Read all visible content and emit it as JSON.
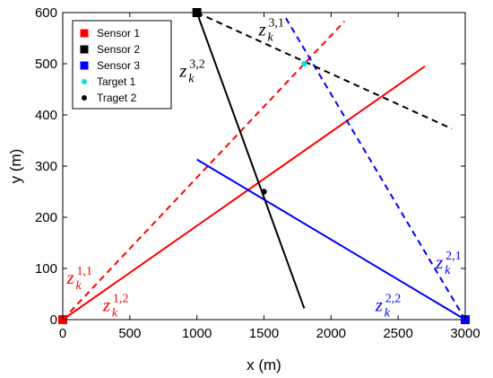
{
  "chart_data": {
    "type": "line",
    "xlabel": "x (m)",
    "ylabel": "y (m)",
    "xlim": [
      0,
      3000
    ],
    "ylim": [
      0,
      600
    ],
    "xticks": [
      0,
      500,
      1000,
      1500,
      2000,
      2500,
      3000
    ],
    "yticks": [
      0,
      100,
      200,
      300,
      400,
      500,
      600
    ],
    "grid": false,
    "legend_placement": "top-left",
    "legend": [
      {
        "label": "Sensor 1",
        "marker": "square",
        "color": "#ff0000"
      },
      {
        "label": "Sensor 2",
        "marker": "square",
        "color": "#000000"
      },
      {
        "label": "Sensor 3",
        "marker": "square",
        "color": "#0000ff"
      },
      {
        "label": "Target 1",
        "marker": "dot",
        "color": "#00e5e5"
      },
      {
        "label": "Traget 2",
        "marker": "dot",
        "color": "#000000"
      }
    ],
    "sensors": [
      {
        "x": 0,
        "y": 0,
        "color": "#ff0000"
      },
      {
        "x": 1000,
        "y": 600,
        "color": "#000000"
      },
      {
        "x": 3000,
        "y": 0,
        "color": "#0000ff"
      }
    ],
    "targets": [
      {
        "x": 1800,
        "y": 500,
        "color": "#00e5e5"
      },
      {
        "x": 1500,
        "y": 250,
        "color": "#000000"
      }
    ],
    "lines": [
      {
        "id": "z11",
        "color": "#ff0000",
        "dash": true,
        "x": [
          0,
          2100
        ],
        "y": [
          0,
          583
        ]
      },
      {
        "id": "z12",
        "color": "#ff0000",
        "dash": false,
        "x": [
          0,
          2700
        ],
        "y": [
          0,
          495
        ]
      },
      {
        "id": "z21",
        "color": "#0000ff",
        "dash": true,
        "x": [
          3000,
          1650
        ],
        "y": [
          0,
          595
        ]
      },
      {
        "id": "z22",
        "color": "#0000ff",
        "dash": false,
        "x": [
          3000,
          1000
        ],
        "y": [
          0,
          313
        ]
      },
      {
        "id": "z31",
        "color": "#000000",
        "dash": true,
        "x": [
          1000,
          2900
        ],
        "y": [
          600,
          373
        ]
      },
      {
        "id": "z32",
        "color": "#000000",
        "dash": false,
        "x": [
          1000,
          1800
        ],
        "y": [
          600,
          22
        ]
      }
    ],
    "annotations": [
      {
        "main": "z",
        "sub": "k",
        "sup": "1,1",
        "color": "#ff0000",
        "x": 30,
        "y": 70
      },
      {
        "main": "z",
        "sub": "k",
        "sup": "1,2",
        "color": "#ff0000",
        "x": 300,
        "y": 17
      },
      {
        "main": "z",
        "sub": "k",
        "sup": "2,1",
        "color": "#0000ff",
        "x": 2780,
        "y": 100
      },
      {
        "main": "z",
        "sub": "k",
        "sup": "2,2",
        "color": "#0000ff",
        "x": 2330,
        "y": 17
      },
      {
        "main": "z",
        "sub": "k",
        "sup": "3,1",
        "color": "#000000",
        "x": 1460,
        "y": 555
      },
      {
        "main": "z",
        "sub": "k",
        "sup": "3,2",
        "color": "#000000",
        "x": 870,
        "y": 475
      }
    ]
  }
}
